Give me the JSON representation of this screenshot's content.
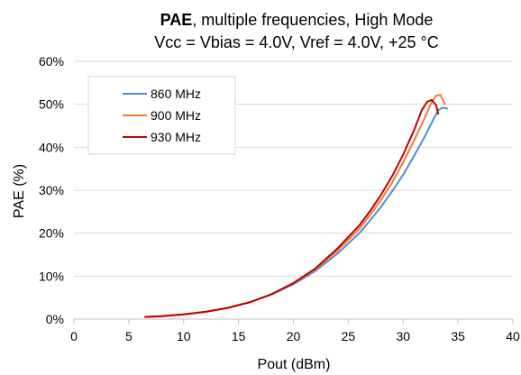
{
  "chart_data": {
    "type": "line",
    "title_bold": "PAE",
    "title_rest": ", multiple frequencies, High Mode",
    "subtitle": "Vcc = Vbias = 4.0V, Vref = 4.0V, +25 °C",
    "xlabel": "Pout (dBm)",
    "ylabel": "PAE (%)",
    "xlim": [
      0,
      40
    ],
    "ylim": [
      0,
      60
    ],
    "x_ticks": [
      0,
      5,
      10,
      15,
      20,
      25,
      30,
      35,
      40
    ],
    "x_tick_labels": [
      "0",
      "5",
      "10",
      "15",
      "20",
      "25",
      "30",
      "35",
      "40"
    ],
    "y_ticks": [
      0,
      10,
      20,
      30,
      40,
      50,
      60
    ],
    "y_tick_labels": [
      "0%",
      "10%",
      "20%",
      "30%",
      "40%",
      "50%",
      "60%"
    ],
    "grid": "horizontal",
    "legend_position": "top-left",
    "series": [
      {
        "name": "860 MHz",
        "color": "#4a90d9",
        "points": [
          [
            6.5,
            0.5
          ],
          [
            8,
            0.7
          ],
          [
            10,
            1.1
          ],
          [
            12,
            1.7
          ],
          [
            14,
            2.6
          ],
          [
            16,
            3.9
          ],
          [
            18,
            5.7
          ],
          [
            20,
            8.1
          ],
          [
            22,
            11.2
          ],
          [
            24,
            15.2
          ],
          [
            26,
            20.0
          ],
          [
            27,
            23.0
          ],
          [
            28,
            26.2
          ],
          [
            29,
            29.8
          ],
          [
            30,
            33.6
          ],
          [
            31,
            38.0
          ],
          [
            32,
            42.6
          ],
          [
            32.7,
            46.2
          ],
          [
            33.2,
            48.6
          ],
          [
            33.6,
            49.2
          ],
          [
            34.0,
            49.0
          ]
        ]
      },
      {
        "name": "900 MHz",
        "color": "#ed7d31",
        "points": [
          [
            6.5,
            0.5
          ],
          [
            8,
            0.7
          ],
          [
            10,
            1.1
          ],
          [
            12,
            1.7
          ],
          [
            14,
            2.6
          ],
          [
            16,
            3.9
          ],
          [
            18,
            5.8
          ],
          [
            20,
            8.3
          ],
          [
            22,
            11.6
          ],
          [
            24,
            15.9
          ],
          [
            26,
            21.0
          ],
          [
            27,
            24.3
          ],
          [
            28,
            27.8
          ],
          [
            29,
            31.8
          ],
          [
            30,
            36.5
          ],
          [
            31,
            41.6
          ],
          [
            32,
            47.0
          ],
          [
            32.5,
            50.0
          ],
          [
            33.0,
            52.0
          ],
          [
            33.4,
            52.2
          ],
          [
            33.8,
            50.0
          ]
        ]
      },
      {
        "name": "930 MHz",
        "color": "#c00000",
        "points": [
          [
            6.5,
            0.5
          ],
          [
            8,
            0.7
          ],
          [
            10,
            1.1
          ],
          [
            12,
            1.7
          ],
          [
            14,
            2.6
          ],
          [
            16,
            3.9
          ],
          [
            18,
            5.8
          ],
          [
            20,
            8.4
          ],
          [
            22,
            11.8
          ],
          [
            24,
            16.4
          ],
          [
            26,
            21.8
          ],
          [
            27,
            25.2
          ],
          [
            28,
            29.0
          ],
          [
            29,
            33.3
          ],
          [
            30,
            38.3
          ],
          [
            31,
            44.0
          ],
          [
            31.7,
            48.6
          ],
          [
            32.2,
            50.6
          ],
          [
            32.6,
            51.0
          ],
          [
            33.0,
            49.8
          ],
          [
            33.2,
            47.8
          ]
        ]
      }
    ]
  }
}
